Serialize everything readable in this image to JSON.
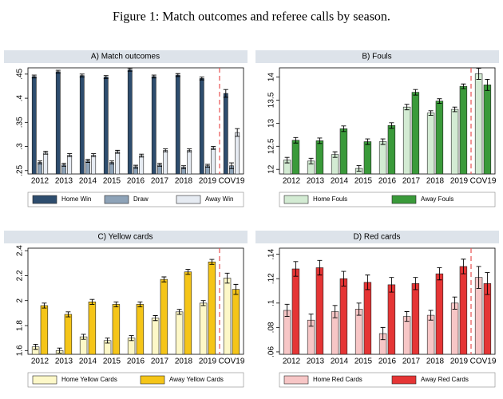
{
  "figure_title": "Figure 1: Match outcomes and referee calls by season.",
  "chart_data": [
    {
      "type": "bar",
      "title": "A) Match outcomes",
      "categories": [
        "2012",
        "2013",
        "2014",
        "2015",
        "2016",
        "2017",
        "2018",
        "2019",
        "COV19"
      ],
      "series": [
        {
          "name": "Home Win",
          "color": "#2e4d6e",
          "values": [
            0.445,
            0.455,
            0.447,
            0.444,
            0.459,
            0.445,
            0.448,
            0.441,
            0.41
          ],
          "errors": [
            0.003,
            0.003,
            0.003,
            0.003,
            0.003,
            0.003,
            0.003,
            0.003,
            0.008
          ]
        },
        {
          "name": "Draw",
          "color": "#8ea3b8",
          "values": [
            0.267,
            0.262,
            0.27,
            0.267,
            0.258,
            0.262,
            0.257,
            0.26,
            0.26
          ],
          "errors": [
            0.003,
            0.003,
            0.003,
            0.003,
            0.003,
            0.003,
            0.003,
            0.003,
            0.006
          ]
        },
        {
          "name": "Away Win",
          "color": "#e6ebf2",
          "values": [
            0.287,
            0.282,
            0.282,
            0.289,
            0.281,
            0.292,
            0.292,
            0.297,
            0.329
          ],
          "errors": [
            0.003,
            0.003,
            0.003,
            0.003,
            0.003,
            0.003,
            0.003,
            0.003,
            0.008
          ]
        }
      ],
      "ylim": [
        0.243,
        0.463
      ],
      "yticks": [
        {
          "value": 0.25,
          "label": ".25"
        },
        {
          "value": 0.3,
          "label": ".3"
        },
        {
          "value": 0.35,
          "label": ".35"
        },
        {
          "value": 0.4,
          "label": ".4"
        },
        {
          "value": 0.45,
          "label": ".45"
        }
      ]
    },
    {
      "type": "bar",
      "title": "B) Fouls",
      "categories": [
        "2012",
        "2013",
        "2014",
        "2015",
        "2016",
        "2017",
        "2018",
        "2019",
        "COV19"
      ],
      "series": [
        {
          "name": "Home Fouls",
          "color": "#d3ebd3",
          "values": [
            12.2,
            12.18,
            12.32,
            12.02,
            12.6,
            13.35,
            13.22,
            13.3,
            14.07
          ],
          "errors": [
            0.06,
            0.06,
            0.06,
            0.06,
            0.06,
            0.06,
            0.05,
            0.05,
            0.12
          ]
        },
        {
          "name": "Away Fouls",
          "color": "#3a9a3a",
          "values": [
            12.63,
            12.62,
            12.88,
            12.6,
            12.95,
            13.67,
            13.48,
            13.8,
            13.83
          ],
          "errors": [
            0.06,
            0.06,
            0.06,
            0.06,
            0.06,
            0.06,
            0.05,
            0.05,
            0.12
          ]
        }
      ],
      "ylim": [
        11.9,
        14.2
      ],
      "yticks": [
        12,
        12.5,
        13,
        13.5,
        14
      ]
    },
    {
      "type": "bar",
      "title": "C) Yellow cards",
      "categories": [
        "2012",
        "2013",
        "2014",
        "2015",
        "2016",
        "2017",
        "2018",
        "2019",
        "COV19"
      ],
      "series": [
        {
          "name": "Home Yellow Cards",
          "color": "#fdf8c8",
          "values": [
            1.63,
            1.6,
            1.71,
            1.68,
            1.7,
            1.86,
            1.91,
            1.98,
            2.18
          ],
          "errors": [
            0.02,
            0.02,
            0.02,
            0.02,
            0.02,
            0.02,
            0.02,
            0.02,
            0.04
          ]
        },
        {
          "name": "Away Yellow Cards",
          "color": "#f5c518",
          "values": [
            1.96,
            1.89,
            1.99,
            1.97,
            1.97,
            2.17,
            2.23,
            2.31,
            2.09
          ],
          "errors": [
            0.02,
            0.02,
            0.02,
            0.02,
            0.02,
            0.02,
            0.02,
            0.02,
            0.04
          ]
        }
      ],
      "ylim": [
        1.57,
        2.42
      ],
      "yticks": [
        1.6,
        1.8,
        2,
        2.2,
        2.4
      ]
    },
    {
      "type": "bar",
      "title": "D) Red cards",
      "categories": [
        "2012",
        "2013",
        "2014",
        "2015",
        "2016",
        "2017",
        "2018",
        "2019",
        "COV19"
      ],
      "series": [
        {
          "name": "Home Red Cards",
          "color": "#f7c6c6",
          "values": [
            0.094,
            0.086,
            0.093,
            0.095,
            0.075,
            0.089,
            0.09,
            0.1,
            0.121
          ],
          "errors": [
            0.005,
            0.005,
            0.005,
            0.005,
            0.005,
            0.004,
            0.004,
            0.005,
            0.009
          ]
        },
        {
          "name": "Away Red Cards",
          "color": "#e53535",
          "values": [
            0.128,
            0.129,
            0.12,
            0.117,
            0.115,
            0.116,
            0.124,
            0.13,
            0.116
          ],
          "errors": [
            0.006,
            0.006,
            0.006,
            0.006,
            0.006,
            0.005,
            0.005,
            0.006,
            0.009
          ]
        }
      ],
      "ylim": [
        0.058,
        0.145
      ],
      "yticks": [
        {
          "value": 0.06,
          "label": ".06"
        },
        {
          "value": 0.08,
          "label": ".08"
        },
        {
          "value": 0.1,
          "label": ".1"
        },
        {
          "value": 0.12,
          "label": ".12"
        },
        {
          "value": 0.14,
          "label": ".14"
        }
      ]
    }
  ]
}
